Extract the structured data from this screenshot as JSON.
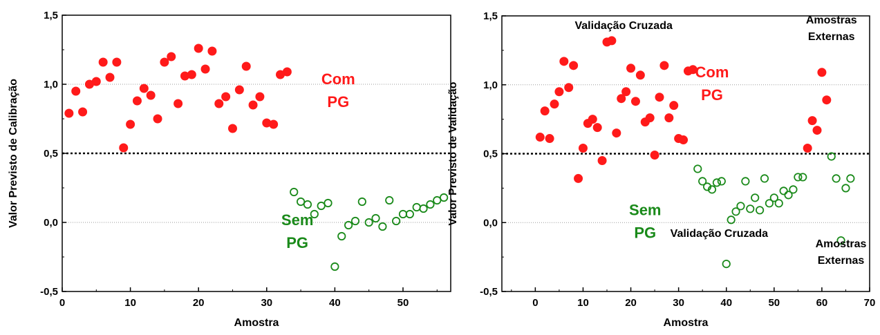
{
  "chart_data": [
    {
      "type": "scatter",
      "xlabel": "Amostra",
      "ylabel": "Valor Previsto de Calibração",
      "xlim": [
        0,
        57
      ],
      "ylim": [
        -0.5,
        1.5
      ],
      "x_ticks": [
        "0",
        "10",
        "20",
        "30",
        "40",
        "50"
      ],
      "y_ticks": [
        "-0,5",
        "0,0",
        "0,5",
        "1,0",
        "1,5"
      ],
      "grid": {
        "dotted_lines_at_y": [
          0.0,
          1.0
        ]
      },
      "threshold": 0.5,
      "colors": {
        "com_pg": "#ff1a1a",
        "sem_pg": "#1a8a1a",
        "threshold": "#000000",
        "grid": "#9a9a9a"
      },
      "annotations": [
        {
          "lines": [
            "Com",
            "PG"
          ],
          "color": "#ff1a1a",
          "x": 40.5,
          "y": 1.0
        },
        {
          "lines": [
            "Sem",
            "PG"
          ],
          "color": "#1a8a1a",
          "x": 34.5,
          "y": -0.02
        }
      ],
      "series": [
        {
          "marker": "filled-circle",
          "color": "#ff1a1a",
          "points": [
            [
              1,
              0.79
            ],
            [
              2,
              0.95
            ],
            [
              3,
              0.8
            ],
            [
              4,
              1.0
            ],
            [
              5,
              1.02
            ],
            [
              6,
              1.16
            ],
            [
              7,
              1.05
            ],
            [
              8,
              1.16
            ],
            [
              9,
              0.54
            ],
            [
              10,
              0.71
            ],
            [
              11,
              0.88
            ],
            [
              12,
              0.97
            ],
            [
              13,
              0.92
            ],
            [
              14,
              0.75
            ],
            [
              15,
              1.16
            ],
            [
              16,
              1.2
            ],
            [
              17,
              0.86
            ],
            [
              18,
              1.06
            ],
            [
              19,
              1.07
            ],
            [
              20,
              1.26
            ],
            [
              21,
              1.11
            ],
            [
              22,
              1.24
            ],
            [
              23,
              0.86
            ],
            [
              24,
              0.91
            ],
            [
              25,
              0.68
            ],
            [
              26,
              0.96
            ],
            [
              27,
              1.13
            ],
            [
              28,
              0.85
            ],
            [
              29,
              0.91
            ],
            [
              30,
              0.72
            ],
            [
              31,
              0.71
            ],
            [
              32,
              1.07
            ],
            [
              33,
              1.09
            ]
          ]
        },
        {
          "marker": "open-circle",
          "color": "#1a8a1a",
          "points": [
            [
              34,
              0.22
            ],
            [
              35,
              0.15
            ],
            [
              36,
              0.13
            ],
            [
              37,
              0.06
            ],
            [
              38,
              0.12
            ],
            [
              39,
              0.14
            ],
            [
              40,
              -0.32
            ],
            [
              41,
              -0.1
            ],
            [
              42,
              -0.02
            ],
            [
              43,
              0.01
            ],
            [
              44,
              0.15
            ],
            [
              45,
              0.0
            ],
            [
              46,
              0.03
            ],
            [
              47,
              -0.03
            ],
            [
              48,
              0.16
            ],
            [
              49,
              0.01
            ],
            [
              50,
              0.06
            ],
            [
              51,
              0.06
            ],
            [
              52,
              0.11
            ],
            [
              53,
              0.1
            ],
            [
              54,
              0.13
            ],
            [
              55,
              0.16
            ],
            [
              56,
              0.18
            ]
          ]
        }
      ]
    },
    {
      "type": "scatter",
      "xlabel": "Amostra",
      "ylabel": "Valor Previsto de Validação",
      "xlim": [
        -7,
        70
      ],
      "ylim": [
        -0.5,
        1.5
      ],
      "x_ticks": [
        "0",
        "10",
        "20",
        "30",
        "40",
        "50",
        "60",
        "70"
      ],
      "y_ticks": [
        "-0,5",
        "0,0",
        "0,5",
        "1,0",
        "1,5"
      ],
      "grid": {
        "dotted_lines_at_y": [
          0.0,
          1.0
        ]
      },
      "threshold": 0.5,
      "colors": {
        "com_pg": "#ff1a1a",
        "sem_pg": "#1a8a1a",
        "threshold": "#000000",
        "grid": "#9a9a9a"
      },
      "annotations": [
        {
          "lines": [
            "Validação Cruzada"
          ],
          "color": "#000000",
          "x": 18.5,
          "y": 1.405,
          "size": "small"
        },
        {
          "lines": [
            "Amostras",
            "Externas"
          ],
          "color": "#000000",
          "x": 62.0,
          "y": 1.445,
          "size": "small"
        },
        {
          "lines": [
            "Com",
            "PG"
          ],
          "color": "#ff1a1a",
          "x": 37.0,
          "y": 1.055
        },
        {
          "lines": [
            "Sem",
            "PG"
          ],
          "color": "#1a8a1a",
          "x": 23.0,
          "y": 0.055
        },
        {
          "lines": [
            "Validação Cruzada"
          ],
          "color": "#000000",
          "x": 38.5,
          "y": -0.105,
          "size": "small"
        },
        {
          "lines": [
            "Amostras",
            "Externas"
          ],
          "color": "#000000",
          "x": 64.0,
          "y": -0.18,
          "size": "small"
        }
      ],
      "series": [
        {
          "marker": "filled-circle",
          "color": "#ff1a1a",
          "points": [
            [
              1,
              0.62
            ],
            [
              2,
              0.81
            ],
            [
              3,
              0.61
            ],
            [
              4,
              0.86
            ],
            [
              5,
              0.95
            ],
            [
              6,
              1.17
            ],
            [
              7,
              0.98
            ],
            [
              8,
              1.14
            ],
            [
              9,
              0.32
            ],
            [
              10,
              0.54
            ],
            [
              11,
              0.72
            ],
            [
              12,
              0.75
            ],
            [
              13,
              0.69
            ],
            [
              14,
              0.45
            ],
            [
              15,
              1.31
            ],
            [
              16,
              1.32
            ],
            [
              17,
              0.65
            ],
            [
              18,
              0.9
            ],
            [
              19,
              0.95
            ],
            [
              20,
              1.12
            ],
            [
              21,
              0.88
            ],
            [
              22,
              1.07
            ],
            [
              23,
              0.73
            ],
            [
              24,
              0.76
            ],
            [
              25,
              0.49
            ],
            [
              26,
              0.91
            ],
            [
              27,
              1.14
            ],
            [
              28,
              0.76
            ],
            [
              29,
              0.85
            ],
            [
              30,
              0.61
            ],
            [
              31,
              0.6
            ],
            [
              32,
              1.1
            ],
            [
              33,
              1.11
            ],
            [
              57,
              0.54
            ],
            [
              58,
              0.74
            ],
            [
              59,
              0.67
            ],
            [
              60,
              1.09
            ],
            [
              61,
              0.89
            ]
          ]
        },
        {
          "marker": "open-circle",
          "color": "#1a8a1a",
          "points": [
            [
              34,
              0.39
            ],
            [
              35,
              0.3
            ],
            [
              36,
              0.26
            ],
            [
              37,
              0.24
            ],
            [
              38,
              0.29
            ],
            [
              39,
              0.3
            ],
            [
              40,
              -0.3
            ],
            [
              41,
              0.02
            ],
            [
              42,
              0.08
            ],
            [
              43,
              0.12
            ],
            [
              44,
              0.3
            ],
            [
              45,
              0.1
            ],
            [
              46,
              0.18
            ],
            [
              47,
              0.09
            ],
            [
              48,
              0.32
            ],
            [
              49,
              0.14
            ],
            [
              50,
              0.18
            ],
            [
              51,
              0.14
            ],
            [
              52,
              0.23
            ],
            [
              53,
              0.2
            ],
            [
              54,
              0.24
            ],
            [
              55,
              0.33
            ],
            [
              56,
              0.33
            ],
            [
              62,
              0.48
            ],
            [
              63,
              0.32
            ],
            [
              64,
              -0.13
            ],
            [
              65,
              0.25
            ],
            [
              66,
              0.32
            ]
          ]
        }
      ]
    }
  ]
}
